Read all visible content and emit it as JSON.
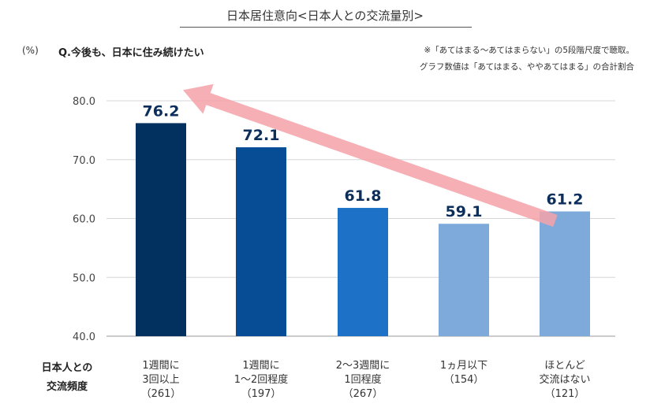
{
  "header": {
    "title": "日本居住意向<日本人との交流量別>",
    "unit": "(%)",
    "question": "Q.今後も、日本に住み続けたい",
    "note_line1": "※「あてはまる～あてはまらない」の5段階尺度で聴取。",
    "note_line2": "グラフ数値は「あてはまる、ややあてはまる」の合計割合"
  },
  "chart_data": {
    "type": "bar",
    "title": "日本居住意向<日本人との交流量別>",
    "xlabel": "日本人との交流頻度",
    "xlabel_lines": [
      "日本人との",
      "交流頻度"
    ],
    "ylabel": "(%)",
    "ylim": [
      40,
      80
    ],
    "yticks": [
      "40.0",
      "50.0",
      "60.0",
      "70.0",
      "80.0"
    ],
    "grid": true,
    "categories": [
      {
        "lines": [
          "1週間に",
          "3回以上",
          "（261）"
        ]
      },
      {
        "lines": [
          "1週間に",
          "1～2回程度",
          "（197）"
        ]
      },
      {
        "lines": [
          "2～3週間に",
          "1回程度",
          "（267）"
        ]
      },
      {
        "lines": [
          "1ヵ月以下",
          "（154）"
        ]
      },
      {
        "lines": [
          "ほとんど",
          "交流はない",
          "（121）"
        ]
      }
    ],
    "values": [
      76.2,
      72.1,
      61.8,
      59.1,
      61.2
    ],
    "data_labels": [
      "76.2",
      "72.1",
      "61.8",
      "59.1",
      "61.2"
    ],
    "colors": [
      "#03315f",
      "#064d96",
      "#1d72c8",
      "#7ea9db",
      "#7ea9db"
    ],
    "label_color": "#0b2e5a",
    "annotation": {
      "type": "arrow",
      "from_category": 4,
      "to_category": 0,
      "color": "#f4a2a8"
    }
  }
}
